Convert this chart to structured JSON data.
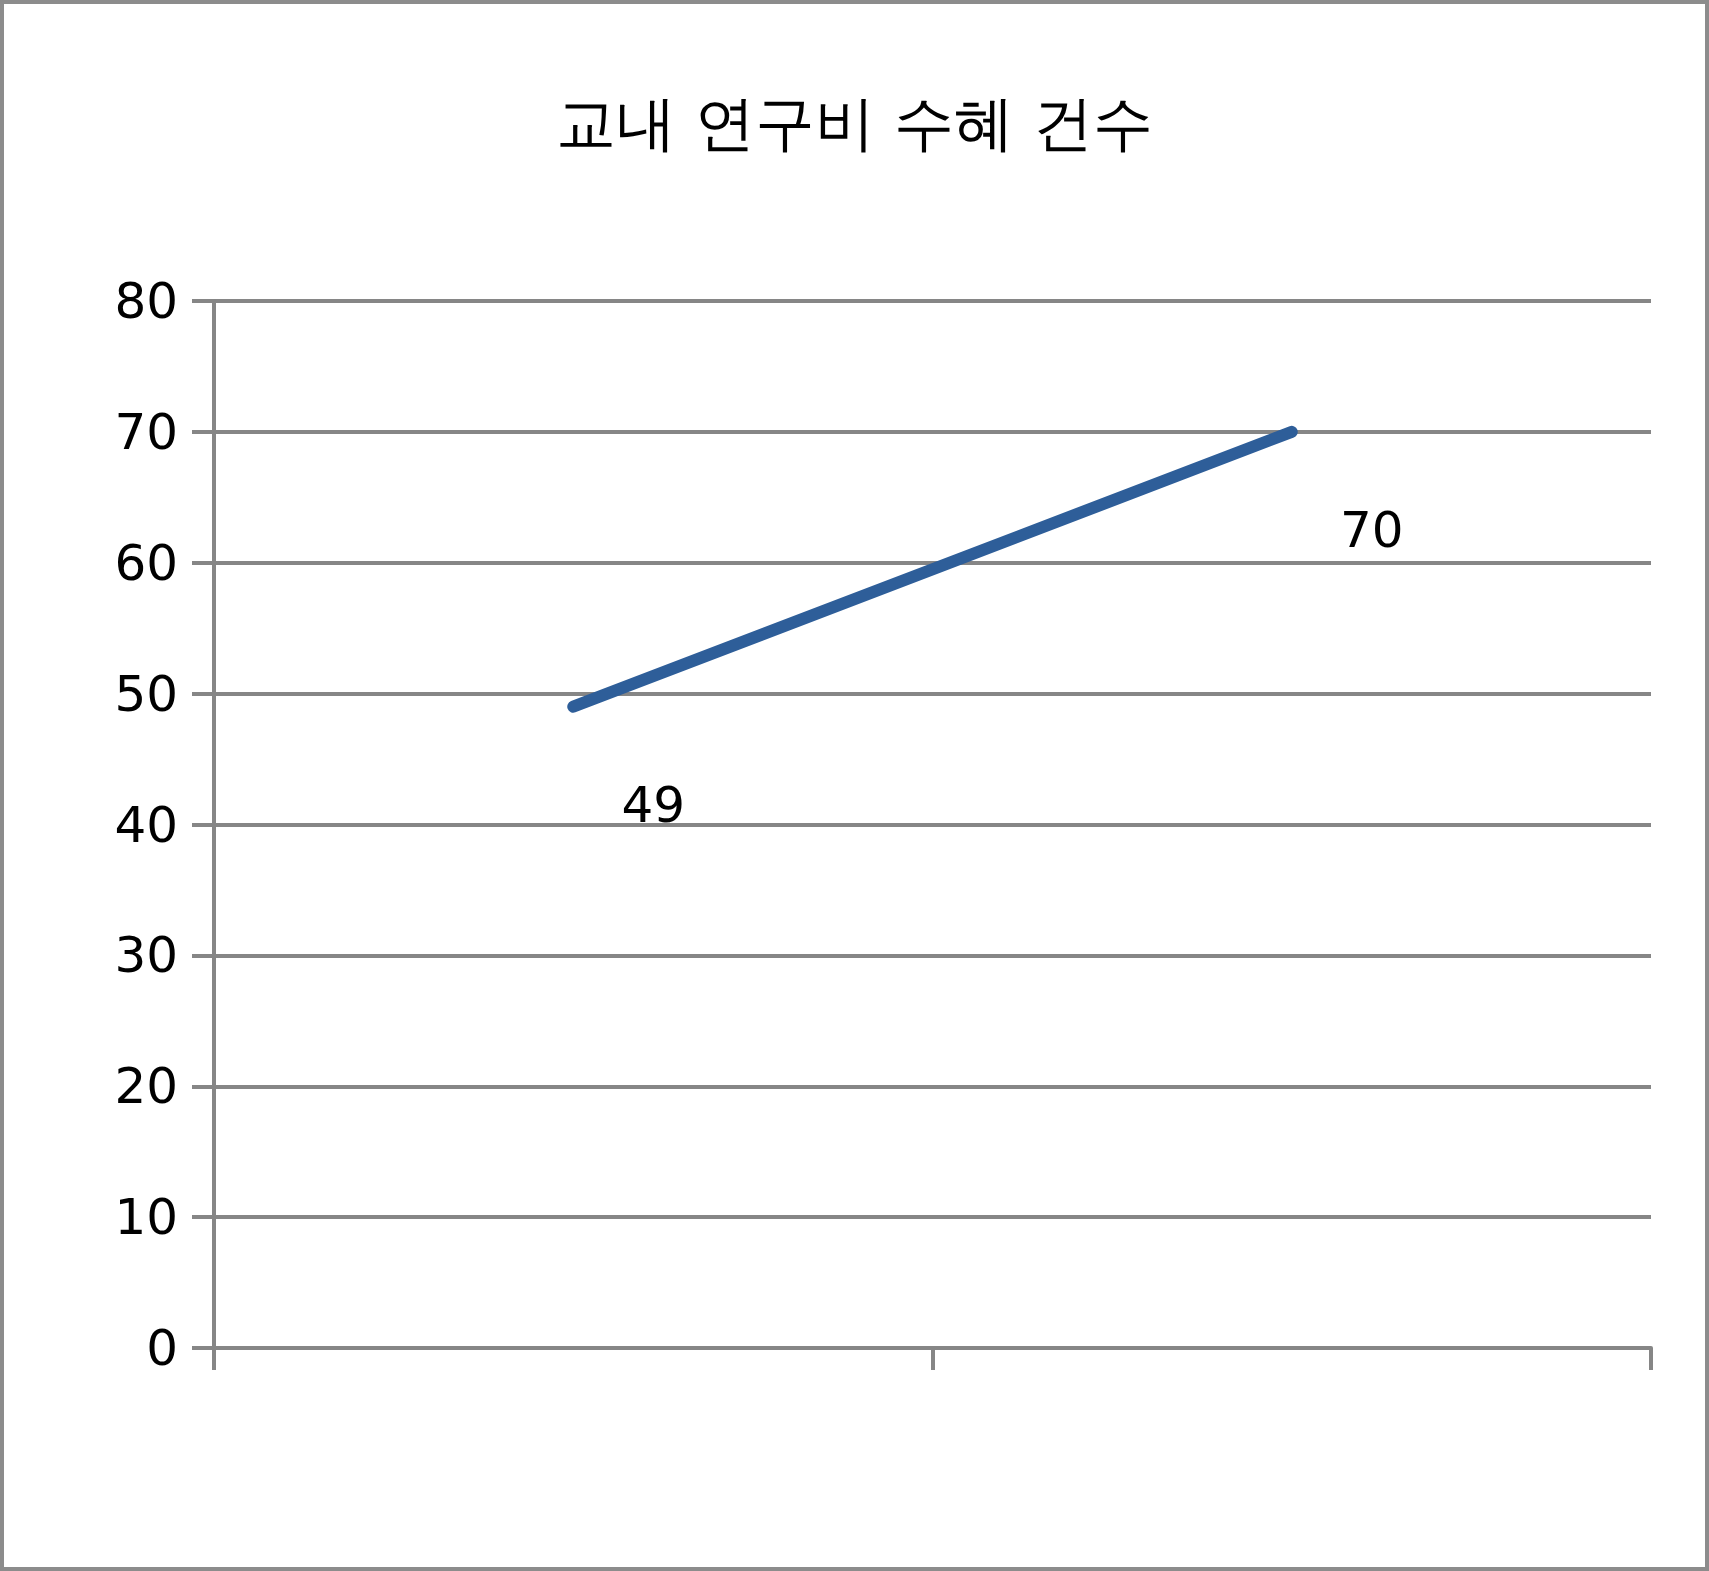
{
  "chart_data": {
    "type": "line",
    "title": "교내 연구비 수혜 건수",
    "categories": [
      null,
      null
    ],
    "series": [
      {
        "color": "#2e5e99",
        "values": [
          49,
          70
        ]
      }
    ],
    "ylim": [
      0,
      80
    ],
    "yticks": [
      0,
      10,
      20,
      30,
      40,
      50,
      60,
      70,
      80
    ],
    "grid": "y",
    "marker": "none",
    "line_style": "solid",
    "data_labels": true
  }
}
